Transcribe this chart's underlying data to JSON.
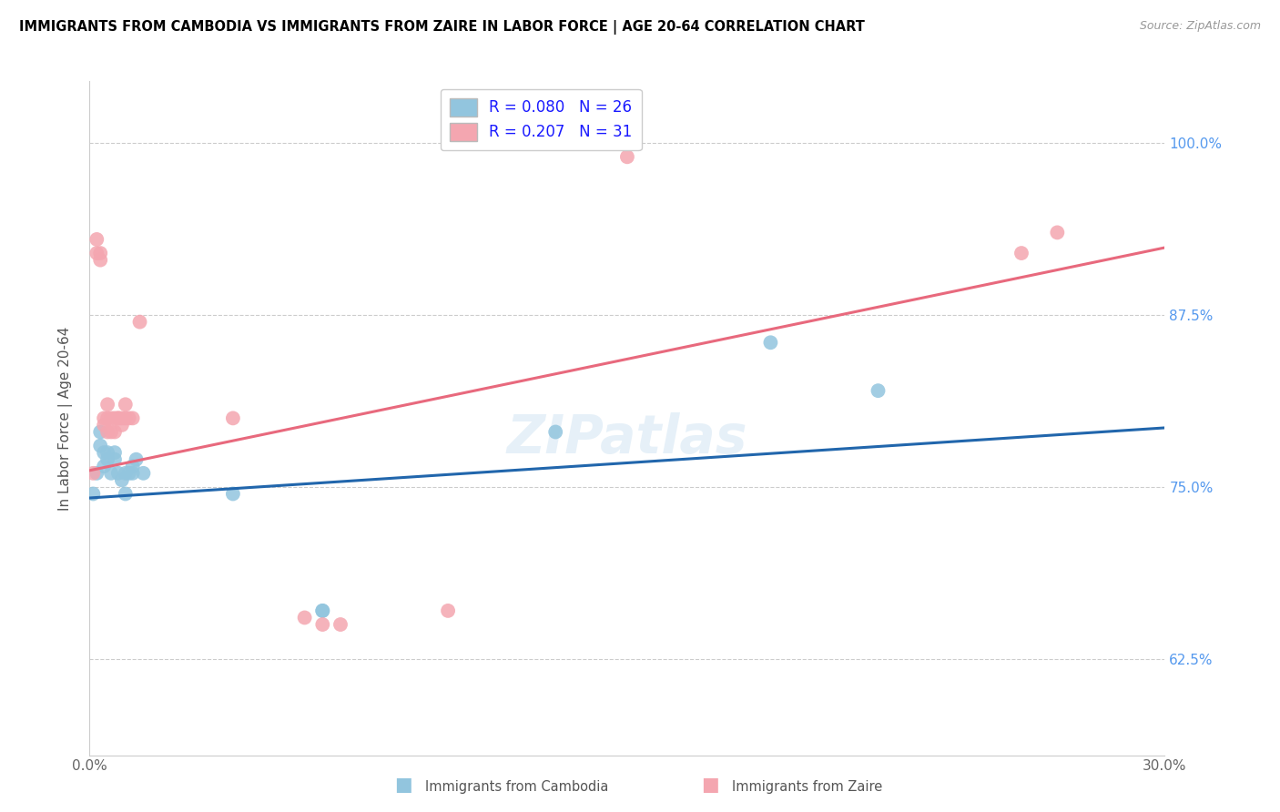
{
  "title": "IMMIGRANTS FROM CAMBODIA VS IMMIGRANTS FROM ZAIRE IN LABOR FORCE | AGE 20-64 CORRELATION CHART",
  "source": "Source: ZipAtlas.com",
  "ylabel": "In Labor Force | Age 20-64",
  "xlim": [
    0.0,
    0.3
  ],
  "ylim": [
    0.555,
    1.045
  ],
  "xticks": [
    0.0,
    0.05,
    0.1,
    0.15,
    0.2,
    0.25,
    0.3
  ],
  "xticklabels": [
    "0.0%",
    "",
    "",
    "",
    "",
    "",
    "30.0%"
  ],
  "ytick_positions": [
    0.625,
    0.75,
    0.875,
    1.0
  ],
  "ytick_labels": [
    "62.5%",
    "75.0%",
    "87.5%",
    "100.0%"
  ],
  "R_cambodia": 0.08,
  "N_cambodia": 26,
  "R_zaire": 0.207,
  "N_zaire": 31,
  "cambodia_color": "#92c5de",
  "zaire_color": "#f4a6b0",
  "line_cambodia_color": "#2166ac",
  "line_zaire_color": "#e8697d",
  "watermark": "ZIPatlas",
  "cambodia_x": [
    0.001,
    0.002,
    0.003,
    0.003,
    0.004,
    0.004,
    0.005,
    0.005,
    0.006,
    0.007,
    0.007,
    0.008,
    0.009,
    0.01,
    0.01,
    0.011,
    0.012,
    0.012,
    0.013,
    0.015,
    0.04,
    0.065,
    0.065,
    0.13,
    0.19,
    0.22
  ],
  "cambodia_y": [
    0.745,
    0.76,
    0.79,
    0.78,
    0.775,
    0.765,
    0.775,
    0.77,
    0.76,
    0.775,
    0.77,
    0.76,
    0.755,
    0.76,
    0.745,
    0.76,
    0.765,
    0.76,
    0.77,
    0.76,
    0.745,
    0.66,
    0.66,
    0.79,
    0.855,
    0.82
  ],
  "zaire_x": [
    0.001,
    0.002,
    0.002,
    0.003,
    0.003,
    0.004,
    0.004,
    0.005,
    0.005,
    0.005,
    0.006,
    0.006,
    0.007,
    0.007,
    0.008,
    0.008,
    0.009,
    0.009,
    0.01,
    0.01,
    0.011,
    0.012,
    0.014,
    0.04,
    0.06,
    0.065,
    0.07,
    0.1,
    0.15,
    0.26,
    0.27
  ],
  "zaire_y": [
    0.76,
    0.93,
    0.92,
    0.92,
    0.915,
    0.795,
    0.8,
    0.79,
    0.81,
    0.8,
    0.8,
    0.79,
    0.8,
    0.79,
    0.8,
    0.8,
    0.795,
    0.8,
    0.81,
    0.8,
    0.8,
    0.8,
    0.87,
    0.8,
    0.655,
    0.65,
    0.65,
    0.66,
    0.99,
    0.92,
    0.935
  ],
  "line_cambodia_intercept": 0.742,
  "line_cambodia_slope": 0.17,
  "line_zaire_intercept": 0.762,
  "line_zaire_slope": 0.54
}
